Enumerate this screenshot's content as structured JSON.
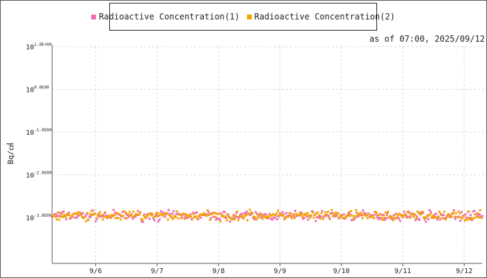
{
  "legend": {
    "series1_label": "Radioactive Concentration(1)",
    "series2_label": "Radioactive Concentration(2)"
  },
  "as_of": "as of 07:00, 2025/09/12",
  "colors": {
    "series1": "#f06cb4",
    "series2": "#f5a300",
    "grid": "#d8d8d8",
    "axis": "#555555"
  },
  "chart_data": {
    "type": "scatter",
    "ylabel": "Bq/cm3",
    "ylabel_display": "Bq/㎤",
    "yscale": "log",
    "ylim": [
      0.0005,
      10
    ],
    "yticks": [
      {
        "base": "10",
        "exp": "1.0E+00"
      },
      {
        "base": "10",
        "exp": "0.0E00"
      },
      {
        "base": "10",
        "exp": "-1.0E00"
      },
      {
        "base": "10",
        "exp": "-2.0E00"
      },
      {
        "base": "10",
        "exp": "-3.0E00"
      }
    ],
    "ytick_values": [
      10,
      1,
      0.1,
      0.01,
      0.001
    ],
    "xlim": [
      "2025-09-05 07:00",
      "2025-09-12 07:00"
    ],
    "xticks": [
      "9/6",
      "9/7",
      "9/8",
      "9/9",
      "9/10",
      "9/11",
      "9/12"
    ],
    "grid": true,
    "legend_position": "top-center",
    "series": [
      {
        "name": "Radioactive Concentration(1)",
        "approx_value": 0.0011,
        "approx_range": [
          0.0008,
          0.0016
        ],
        "interval_hours": 1
      },
      {
        "name": "Radioactive Concentration(2)",
        "approx_value": 0.0011,
        "approx_range": [
          0.0008,
          0.0016
        ],
        "interval_hours": 1
      }
    ]
  }
}
